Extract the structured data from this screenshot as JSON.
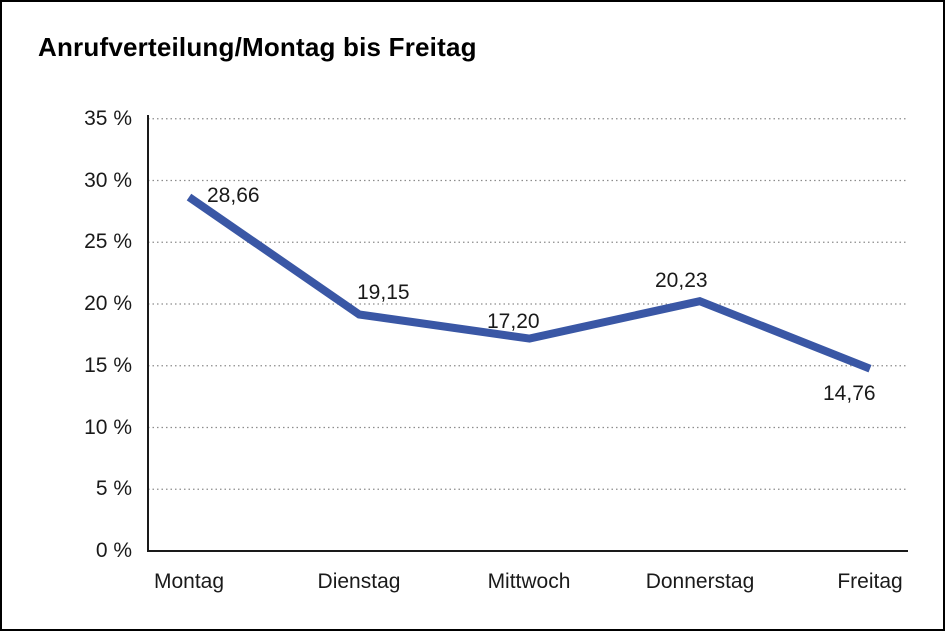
{
  "chart_data": {
    "type": "line",
    "title": "Anrufverteilung/Montag bis Freitag",
    "categories": [
      "Montag",
      "Dienstag",
      "Mittwoch",
      "Donnerstag",
      "Freitag"
    ],
    "values": [
      28.66,
      19.15,
      17.2,
      20.23,
      14.76
    ],
    "point_labels": [
      "28,66",
      "19,15",
      "17,20",
      "20,23",
      "14,76"
    ],
    "y_ticks": [
      {
        "value": 35,
        "label": "35 %"
      },
      {
        "value": 30,
        "label": "30 %"
      },
      {
        "value": 25,
        "label": "25 %"
      },
      {
        "value": 20,
        "label": "20 %"
      },
      {
        "value": 15,
        "label": "15 %"
      },
      {
        "value": 10,
        "label": "10 %"
      },
      {
        "value": 5,
        "label": "5 %"
      },
      {
        "value": 0,
        "label": "0 %"
      }
    ],
    "ylim": [
      0,
      35
    ],
    "xlabel": "",
    "ylabel": "",
    "legend": "none",
    "grid": "horizontal-dotted",
    "colors": {
      "line": "#3A57A5",
      "axis": "#1A1A1A",
      "grid": "#8C8C8C",
      "text": "#1A1A1A",
      "background": "#FFFFFF"
    }
  }
}
